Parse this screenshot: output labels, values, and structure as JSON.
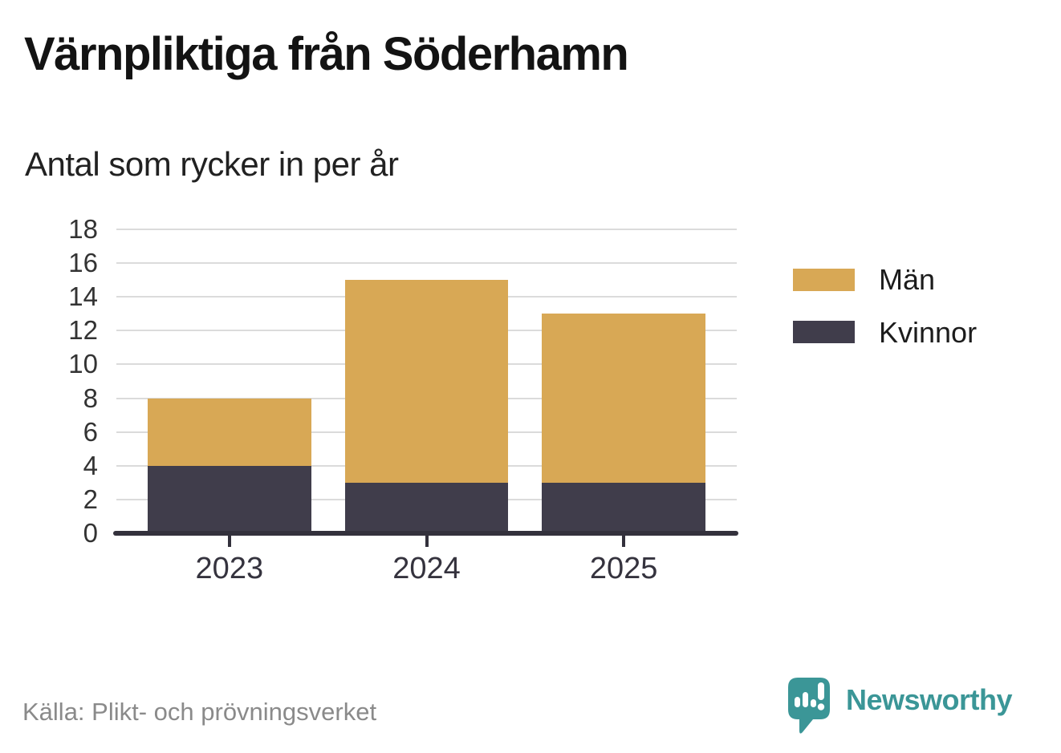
{
  "chart_data": {
    "type": "bar",
    "stacked": true,
    "title": "Värnpliktiga från Söderhamn",
    "subtitle": "Antal som rycker in per år",
    "categories": [
      "2023",
      "2024",
      "2025"
    ],
    "series": [
      {
        "name": "Kvinnor",
        "color": "#403D4B",
        "values": [
          4,
          3,
          3
        ]
      },
      {
        "name": "Män",
        "color": "#D8A855",
        "values": [
          4,
          12,
          10
        ]
      }
    ],
    "legend": {
      "position": "right",
      "entries": [
        {
          "label": "Män",
          "color": "#D8A855"
        },
        {
          "label": "Kvinnor",
          "color": "#403D4B"
        }
      ]
    },
    "xlabel": "",
    "ylabel": "",
    "ylim": [
      0,
      18
    ],
    "ytick_step": 2,
    "grid": "horizontal",
    "grid_color": "#DBDBDB",
    "axis_color": "#33313C",
    "tick_label_color": "#333333"
  },
  "footer": {
    "source": "Källa: Plikt- och prövningsverket",
    "brand": "Newsworthy",
    "brand_color": "#3B9697"
  }
}
